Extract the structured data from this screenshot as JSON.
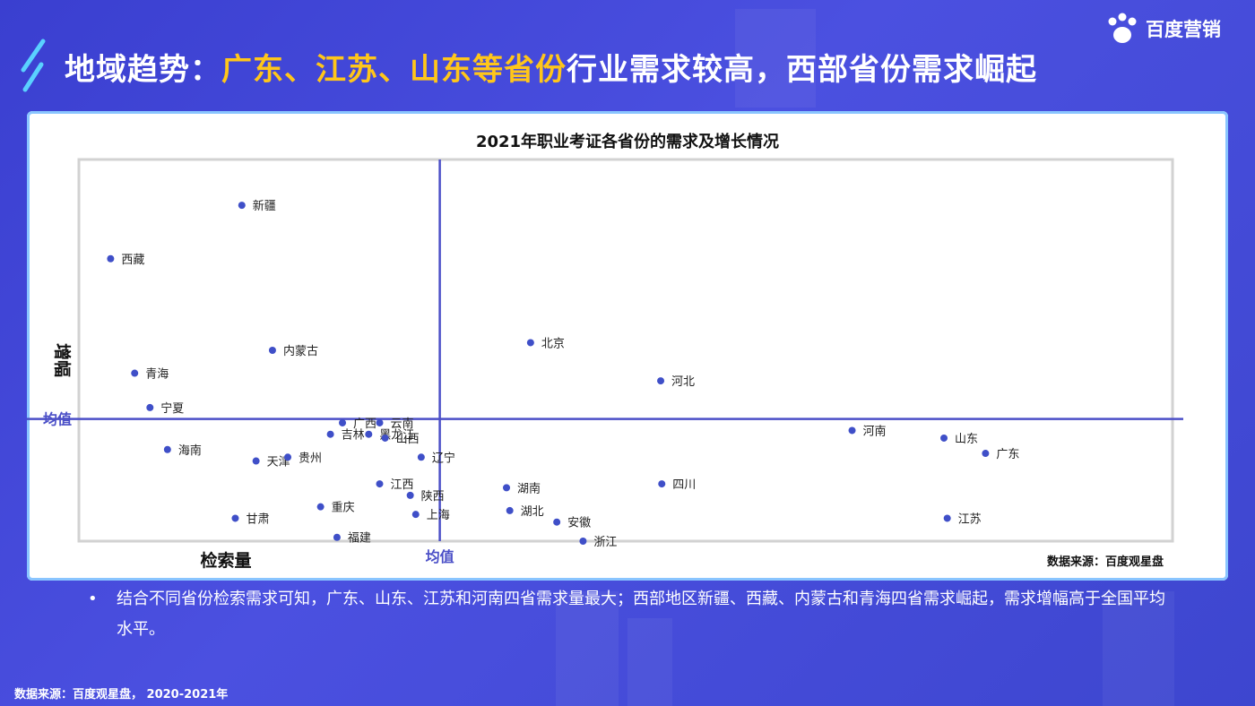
{
  "header": {
    "title_parts": [
      {
        "text": "地域趋势：",
        "highlight": false
      },
      {
        "text": "广东、江苏、山东等省份",
        "highlight": true
      },
      {
        "text": "行业需求较高，西部省份需求崛起",
        "highlight": false
      }
    ],
    "highlight_color": "#ffc61a"
  },
  "logo": {
    "text": "百度营销",
    "icon": "baidu-paw-icon"
  },
  "chart_data": {
    "type": "scatter",
    "title": "2021年职业考证各省份的需求及增长情况",
    "xlabel": "检索量",
    "ylabel": "增幅",
    "x_mean_label": "均值",
    "y_mean_label": "均值",
    "x_mean": 33,
    "y_mean": 32,
    "xlim": [
      0,
      100
    ],
    "ylim": [
      0,
      100
    ],
    "grid": false,
    "point_color": "#3f4fc8",
    "mean_line_color": "#4b4fc7",
    "source": "数据来源：百度观星盘",
    "points": [
      {
        "name": "新疆",
        "x": 14.9,
        "y": 88
      },
      {
        "name": "西藏",
        "x": 2.9,
        "y": 74
      },
      {
        "name": "内蒙古",
        "x": 17.7,
        "y": 50
      },
      {
        "name": "青海",
        "x": 5.1,
        "y": 44
      },
      {
        "name": "宁夏",
        "x": 6.5,
        "y": 35
      },
      {
        "name": "海南",
        "x": 8.1,
        "y": 24
      },
      {
        "name": "天津",
        "x": 16.2,
        "y": 21
      },
      {
        "name": "贵州",
        "x": 19.1,
        "y": 22
      },
      {
        "name": "广西",
        "x": 24.1,
        "y": 31
      },
      {
        "name": "吉林",
        "x": 23,
        "y": 28
      },
      {
        "name": "云南",
        "x": 27.5,
        "y": 31
      },
      {
        "name": "黑龙江",
        "x": 26.5,
        "y": 28
      },
      {
        "name": "山西",
        "x": 28,
        "y": 27
      },
      {
        "name": "辽宁",
        "x": 31.3,
        "y": 22
      },
      {
        "name": "江西",
        "x": 27.5,
        "y": 15
      },
      {
        "name": "陕西",
        "x": 30.3,
        "y": 12
      },
      {
        "name": "重庆",
        "x": 22.1,
        "y": 9
      },
      {
        "name": "甘肃",
        "x": 14.3,
        "y": 6
      },
      {
        "name": "上海",
        "x": 30.8,
        "y": 7
      },
      {
        "name": "福建",
        "x": 23.6,
        "y": 1
      },
      {
        "name": "北京",
        "x": 41.3,
        "y": 52
      },
      {
        "name": "河北",
        "x": 53.2,
        "y": 42
      },
      {
        "name": "湖南",
        "x": 39.1,
        "y": 14
      },
      {
        "name": "湖北",
        "x": 39.4,
        "y": 8
      },
      {
        "name": "四川",
        "x": 53.3,
        "y": 15
      },
      {
        "name": "安徽",
        "x": 43.7,
        "y": 5
      },
      {
        "name": "浙江",
        "x": 46.1,
        "y": 0
      },
      {
        "name": "河南",
        "x": 70.7,
        "y": 29
      },
      {
        "name": "山东",
        "x": 79.1,
        "y": 27
      },
      {
        "name": "广东",
        "x": 82.9,
        "y": 23
      },
      {
        "name": "江苏",
        "x": 79.4,
        "y": 6
      }
    ]
  },
  "bullet": {
    "marker": "•",
    "text": "结合不同省份检索需求可知，广东、山东、江苏和河南四省需求量最大；西部地区新疆、西藏、内蒙古和青海四省需求崛起，需求增幅高于全国平均水平。"
  },
  "footer": {
    "text": "数据来源：百度观星盘， 2020-2021年"
  }
}
